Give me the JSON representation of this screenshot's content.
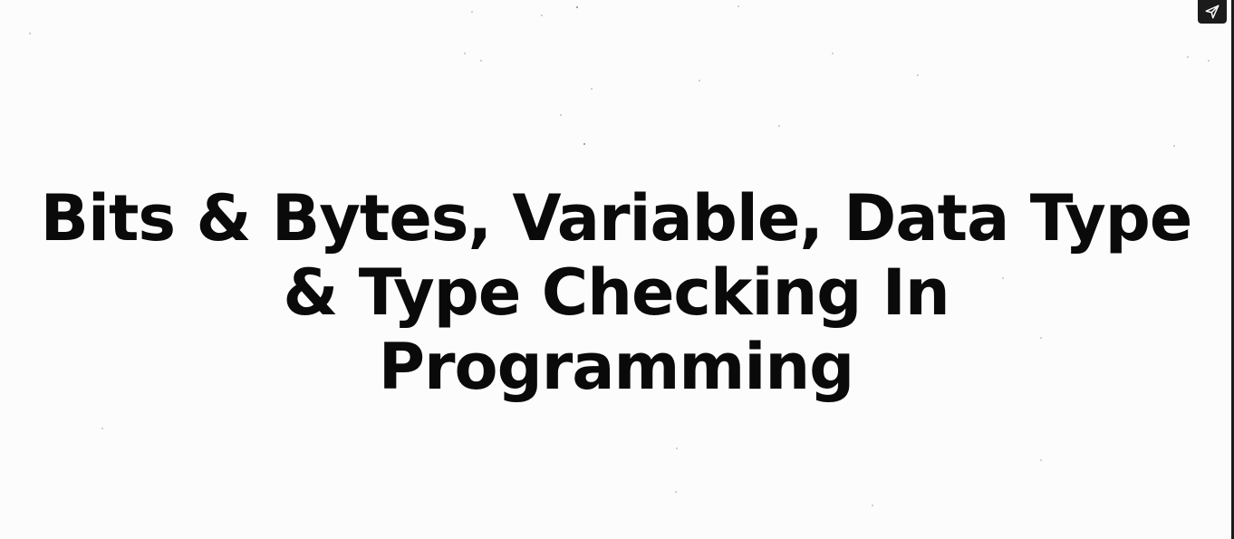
{
  "slide": {
    "title": "Bits & Bytes, Variable, Data Type & Type Checking In Programming",
    "background_color": "#fdfcfd",
    "text_color": "#0a0a0a"
  },
  "controls": {
    "share_icon": "send-icon"
  }
}
